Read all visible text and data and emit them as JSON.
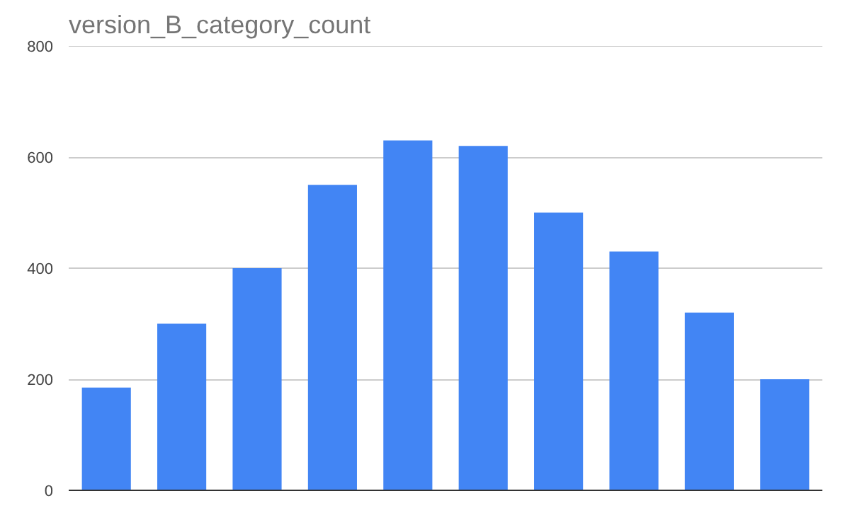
{
  "chart_data": {
    "type": "bar",
    "title": "version_B_category_count",
    "categories": [
      null,
      null,
      null,
      null,
      null,
      null,
      null,
      null,
      null,
      null
    ],
    "values": [
      185,
      300,
      400,
      550,
      630,
      620,
      500,
      430,
      320,
      200
    ],
    "color": "#4285f4",
    "ylim": [
      0,
      800
    ],
    "yticks": [
      0,
      200,
      400,
      600,
      800
    ],
    "grid": "y"
  }
}
